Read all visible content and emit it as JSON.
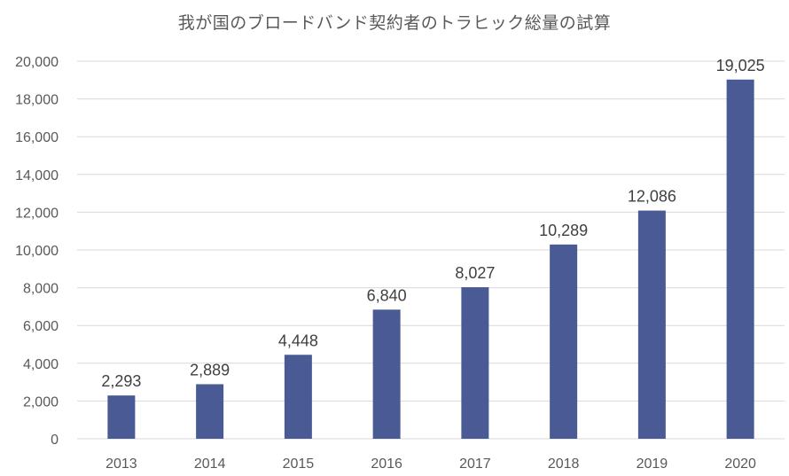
{
  "chart_data": {
    "type": "bar",
    "title": "我が国のブロードバンド契約者のトラヒック総量の試算",
    "categories": [
      "2013",
      "2014",
      "2015",
      "2016",
      "2017",
      "2018",
      "2019",
      "2020"
    ],
    "values": [
      2293,
      2889,
      4448,
      6840,
      8027,
      10289,
      12086,
      19025
    ],
    "data_labels": [
      "2,293",
      "2,889",
      "4,448",
      "6,840",
      "8,027",
      "10,289",
      "12,086",
      "19,025"
    ],
    "ylim": [
      0,
      20000
    ],
    "yticks": [
      0,
      2000,
      4000,
      6000,
      8000,
      10000,
      12000,
      14000,
      16000,
      18000,
      20000
    ],
    "ytick_labels": [
      "0",
      "2,000",
      "4,000",
      "6,000",
      "8,000",
      "10,000",
      "12,000",
      "14,000",
      "16,000",
      "18,000",
      "20,000"
    ],
    "grid": true,
    "legend": "none",
    "bar_color": "#4a5a94",
    "grid_color": "#d9d9d9"
  }
}
